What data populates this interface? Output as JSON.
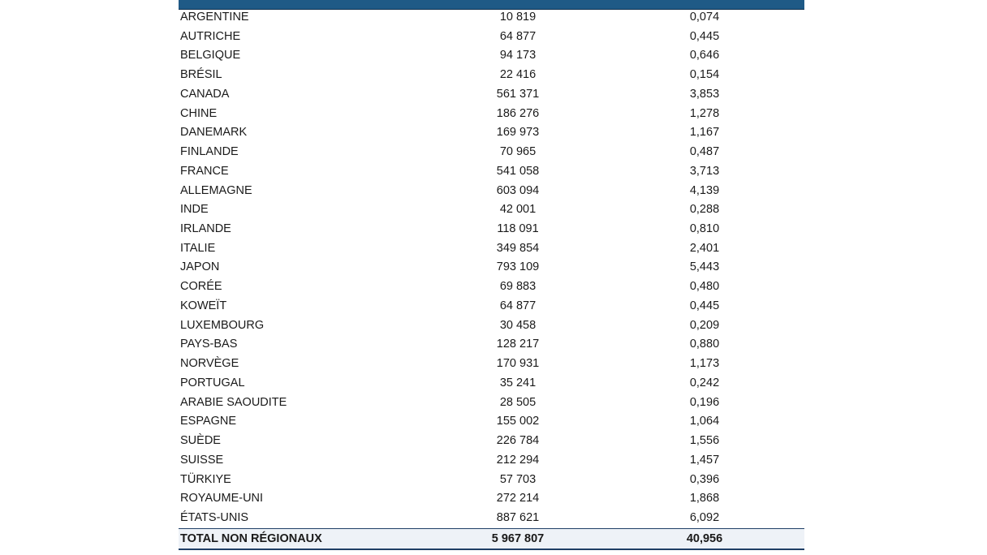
{
  "table": {
    "rows": [
      [
        "ARGENTINE",
        "10 819",
        "0,074"
      ],
      [
        "AUTRICHE",
        "64 877",
        "0,445"
      ],
      [
        "BELGIQUE",
        "94 173",
        "0,646"
      ],
      [
        "BRÉSIL",
        "22 416",
        "0,154"
      ],
      [
        "CANADA",
        "561 371",
        "3,853"
      ],
      [
        "CHINE",
        "186 276",
        "1,278"
      ],
      [
        "DANEMARK",
        "169 973",
        "1,167"
      ],
      [
        "FINLANDE",
        "70 965",
        "0,487"
      ],
      [
        "FRANCE",
        "541 058",
        "3,713"
      ],
      [
        "ALLEMAGNE",
        "603 094",
        "4,139"
      ],
      [
        "INDE",
        "42 001",
        "0,288"
      ],
      [
        "IRLANDE",
        "118 091",
        "0,810"
      ],
      [
        "ITALIE",
        "349 854",
        "2,401"
      ],
      [
        "JAPON",
        "793 109",
        "5,443"
      ],
      [
        "CORÉE",
        "69 883",
        "0,480"
      ],
      [
        "KOWEÏT",
        "64 877",
        "0,445"
      ],
      [
        "LUXEMBOURG",
        "30 458",
        "0,209"
      ],
      [
        "PAYS-BAS",
        "128 217",
        "0,880"
      ],
      [
        "NORVÈGE",
        "170 931",
        "1,173"
      ],
      [
        "PORTUGAL",
        "35 241",
        "0,242"
      ],
      [
        "ARABIE SAOUDITE",
        "28 505",
        "0,196"
      ],
      [
        "ESPAGNE",
        "155 002",
        "1,064"
      ],
      [
        "SUÈDE",
        "226 784",
        "1,556"
      ],
      [
        "SUISSE",
        "212 294",
        "1,457"
      ],
      [
        "TÜRKIYE",
        "57 703",
        "0,396"
      ],
      [
        "ROYAUME-UNI",
        "272 214",
        "1,868"
      ],
      [
        "ÉTATS-UNIS",
        "887 621",
        "6,092"
      ]
    ],
    "total": [
      "TOTAL NON RÉGIONAUX",
      "5 967 807",
      "40,956"
    ]
  }
}
